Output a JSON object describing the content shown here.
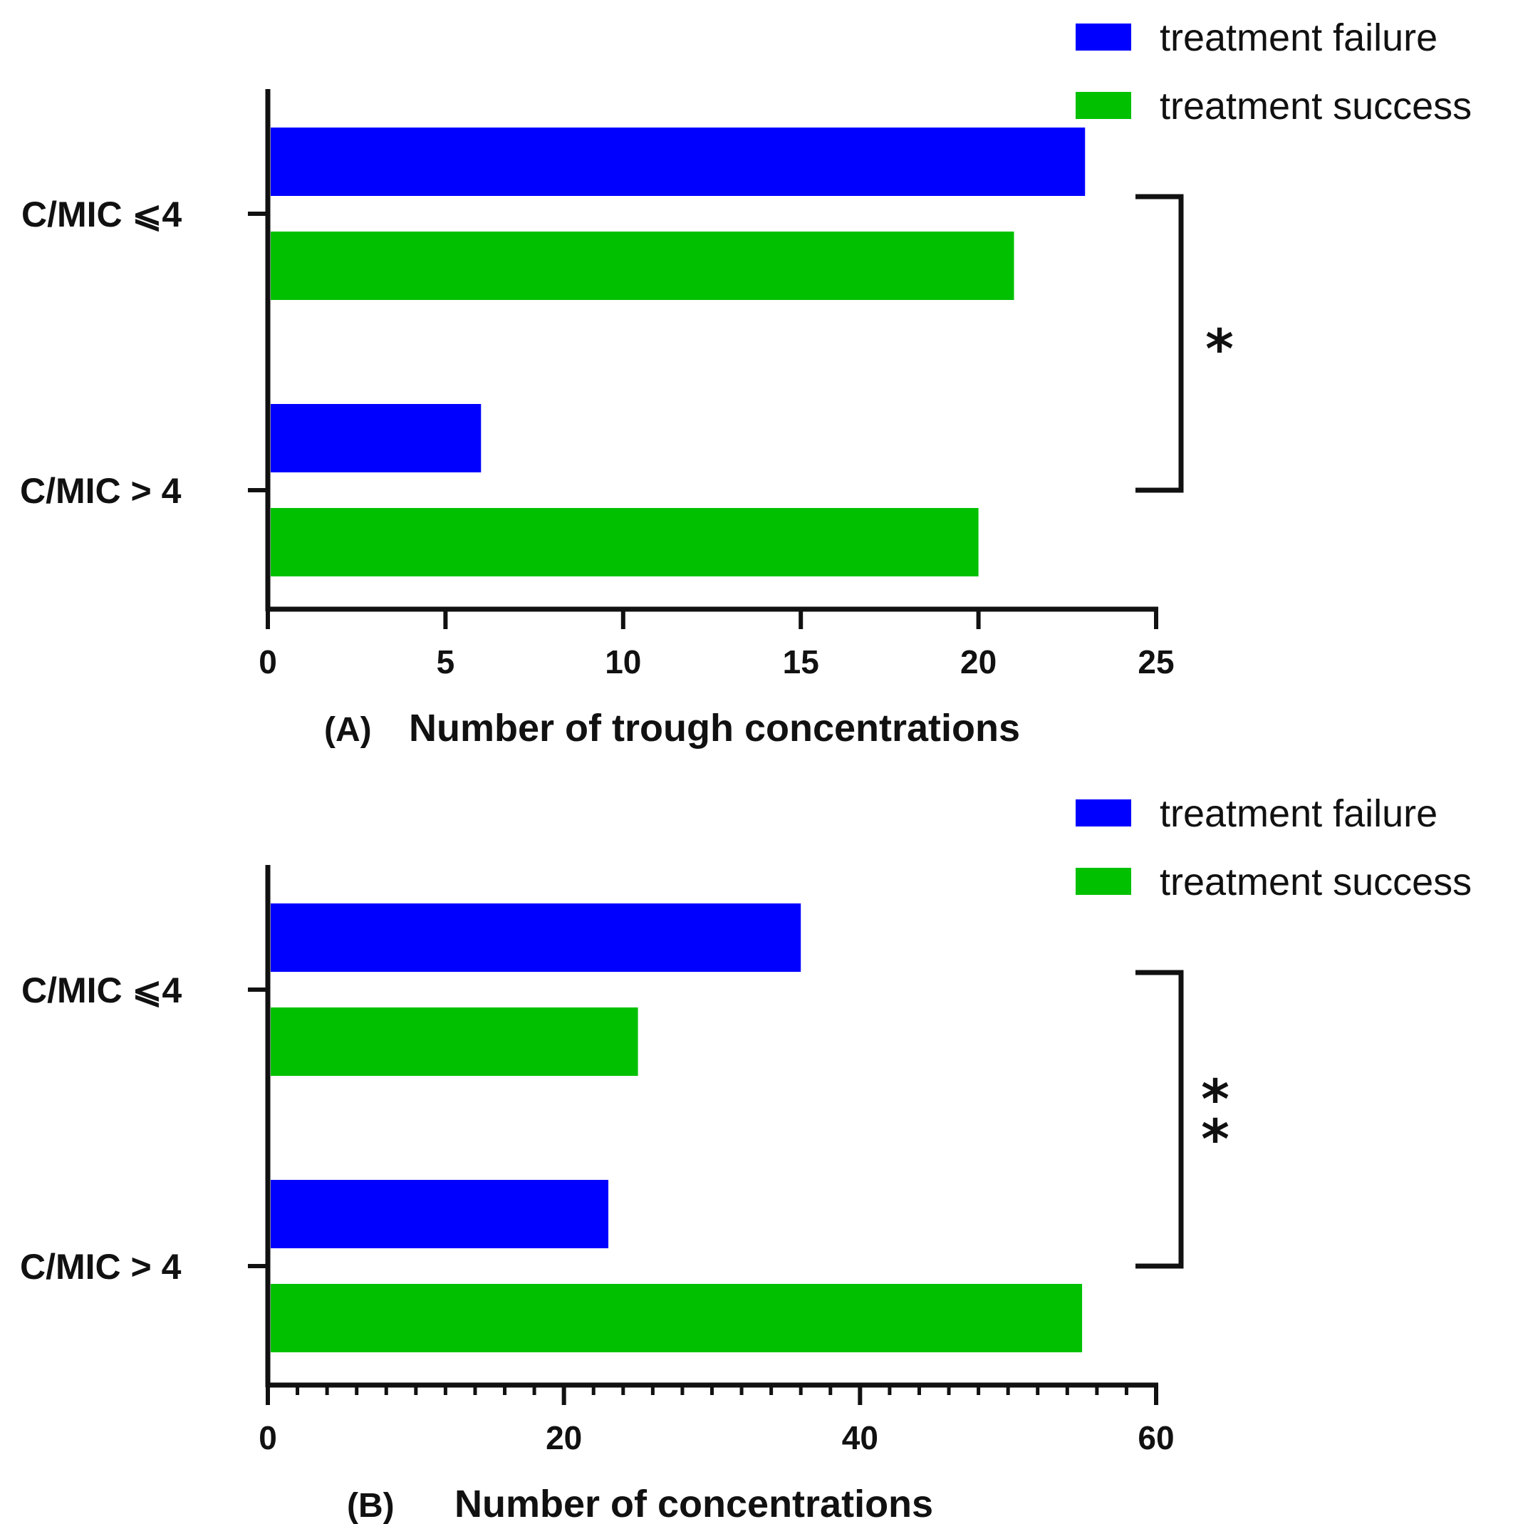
{
  "chart_data": [
    {
      "type": "bar",
      "orientation": "horizontal",
      "panel": "(A)",
      "xlabel": "Number of trough concentrations",
      "categories": [
        "C/MIC ≤ 4",
        "C/MIC > 4"
      ],
      "category_labels": [
        "C/MIC ⩽4",
        "C/MIC > 4"
      ],
      "series": [
        {
          "name": "treatment failure",
          "color": "#0000ff",
          "values": [
            23,
            6
          ]
        },
        {
          "name": "treatment success",
          "color": "#00c000",
          "values": [
            21,
            20
          ]
        }
      ],
      "xlim": [
        0,
        25
      ],
      "xticks": [
        0,
        5,
        10,
        15,
        20,
        25
      ],
      "legend": [
        "treatment failure",
        "treatment success"
      ],
      "legend_position": "top-right",
      "significance": "*"
    },
    {
      "type": "bar",
      "orientation": "horizontal",
      "panel": "(B)",
      "xlabel": "Number of concentrations",
      "categories": [
        "C/MIC ≤ 4",
        "C/MIC > 4"
      ],
      "category_labels": [
        "C/MIC ⩽4",
        "C/MIC > 4"
      ],
      "series": [
        {
          "name": "treatment failure",
          "color": "#0000ff",
          "values": [
            36,
            23
          ]
        },
        {
          "name": "treatment success",
          "color": "#00c000",
          "values": [
            25,
            55
          ]
        }
      ],
      "xlim": [
        0,
        60
      ],
      "xticks": [
        0,
        20,
        40,
        60
      ],
      "minor_tick_step": 2,
      "legend": [
        "treatment failure",
        "treatment success"
      ],
      "legend_position": "top-right",
      "significance": "**"
    }
  ]
}
